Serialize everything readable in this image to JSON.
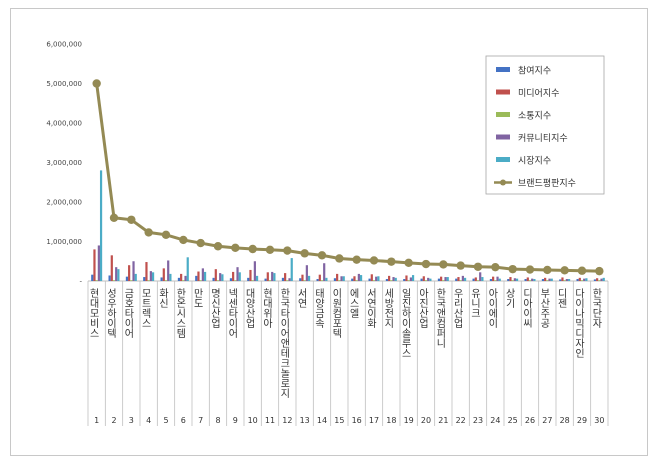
{
  "chart_data": {
    "type": "bar",
    "title": "",
    "xlabel": "",
    "ylabel": "",
    "ylim": [
      0,
      6000000
    ],
    "yticks": [
      "-",
      "1,000,000",
      "2,000,000",
      "3,000,000",
      "4,000,000",
      "5,000,000",
      "6,000,000"
    ],
    "ranks": [
      "1",
      "2",
      "3",
      "4",
      "5",
      "6",
      "7",
      "8",
      "9",
      "10",
      "11",
      "12",
      "13",
      "14",
      "15",
      "16",
      "17",
      "18",
      "19",
      "20",
      "21",
      "22",
      "23",
      "24",
      "25",
      "26",
      "27",
      "28",
      "29",
      "30"
    ],
    "categories": [
      "현대모비스",
      "성우하이텍",
      "금호타이어",
      "모트렉스",
      "화신",
      "한온시스템",
      "만도",
      "명신산업",
      "넥센타이어",
      "대양산업",
      "현대위아",
      "한국타이어앤테크놀로지",
      "서연",
      "태양금속",
      "이원컴포텍",
      "에스엘",
      "서연이화",
      "세방전지",
      "일진하이솔루스",
      "아진산업",
      "한국앤컴퍼니",
      "우리산업",
      "유니크",
      "아이에이",
      "상기",
      "디아이씨",
      "부산주공",
      "디젠",
      "다이나믹디자인",
      "한국단자"
    ],
    "series": [
      {
        "name": "참여지수",
        "color": "#4472c4",
        "values": [
          160000,
          140000,
          110000,
          100000,
          90000,
          80000,
          130000,
          80000,
          70000,
          80000,
          60000,
          80000,
          70000,
          50000,
          70000,
          60000,
          60000,
          50000,
          50000,
          60000,
          60000,
          60000,
          60000,
          50000,
          50000,
          50000,
          50000,
          40000,
          50000,
          40000
        ]
      },
      {
        "name": "미디어지수",
        "color": "#c0504d",
        "values": [
          800000,
          650000,
          400000,
          480000,
          320000,
          180000,
          240000,
          300000,
          230000,
          280000,
          220000,
          200000,
          160000,
          160000,
          180000,
          120000,
          170000,
          130000,
          140000,
          120000,
          110000,
          100000,
          90000,
          110000,
          100000,
          90000,
          80000,
          90000,
          80000,
          70000
        ]
      },
      {
        "name": "소통지수",
        "color": "#9bbb59",
        "values": [
          20000,
          20000,
          20000,
          20000,
          20000,
          20000,
          20000,
          20000,
          20000,
          20000,
          20000,
          20000,
          20000,
          20000,
          20000,
          20000,
          20000,
          20000,
          20000,
          20000,
          20000,
          20000,
          20000,
          20000,
          20000,
          20000,
          20000,
          20000,
          20000,
          20000
        ]
      },
      {
        "name": "커뮤니티지수",
        "color": "#8064a2",
        "values": [
          900000,
          350000,
          500000,
          250000,
          520000,
          130000,
          320000,
          200000,
          350000,
          500000,
          230000,
          70000,
          400000,
          450000,
          120000,
          180000,
          110000,
          100000,
          90000,
          80000,
          100000,
          130000,
          220000,
          110000,
          70000,
          60000,
          60000,
          50000,
          60000,
          60000
        ]
      },
      {
        "name": "시장지수",
        "color": "#4bacc6",
        "values": [
          2800000,
          300000,
          180000,
          220000,
          180000,
          600000,
          230000,
          170000,
          220000,
          130000,
          200000,
          580000,
          130000,
          80000,
          120000,
          150000,
          120000,
          80000,
          150000,
          60000,
          100000,
          80000,
          100000,
          60000,
          60000,
          50000,
          60000,
          50000,
          70000,
          80000
        ]
      }
    ],
    "line": {
      "name": "브랜드평판지수",
      "color": "#948a54",
      "values": [
        5000000,
        1600000,
        1550000,
        1230000,
        1170000,
        1040000,
        960000,
        880000,
        840000,
        810000,
        790000,
        770000,
        700000,
        650000,
        570000,
        540000,
        520000,
        490000,
        460000,
        430000,
        420000,
        390000,
        360000,
        350000,
        300000,
        290000,
        280000,
        270000,
        260000,
        250000
      ]
    },
    "legend_position": "top-right"
  }
}
